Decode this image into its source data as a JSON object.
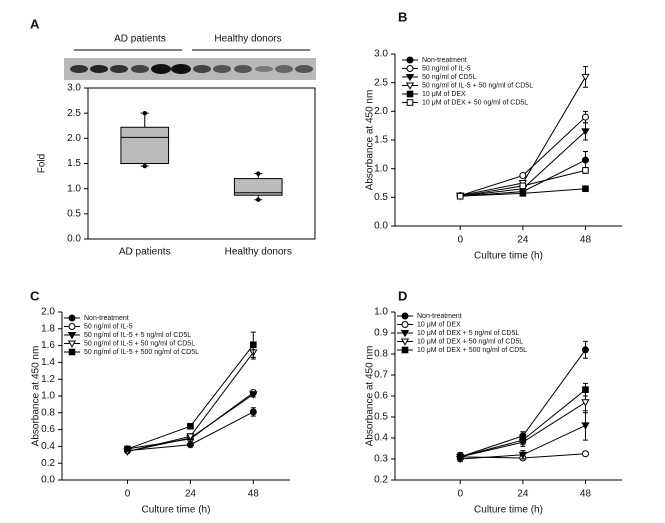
{
  "chart_data": [
    {
      "type": "box",
      "panel": "A",
      "blot_labels": [
        "AD patients",
        "Healthy donors"
      ],
      "y_label": "Fold",
      "categories": [
        "AD patients",
        "Healthy donors"
      ],
      "color": "#bbbbbb",
      "boxes": [
        {
          "min": 1.45,
          "q1": 1.5,
          "median": 2.02,
          "q3": 2.22,
          "max": 2.5
        },
        {
          "min": 0.78,
          "q1": 0.87,
          "median": 0.92,
          "q3": 1.2,
          "max": 1.3
        }
      ],
      "ylim": [
        0,
        3
      ],
      "yticks": [
        {
          "value": 0,
          "label": "0.0"
        },
        {
          "value": 0.5,
          "label": "0.5"
        },
        {
          "value": 1,
          "label": "1.0"
        },
        {
          "value": 1.5,
          "label": "1.5"
        },
        {
          "value": 2,
          "label": "2.0"
        },
        {
          "value": 2.5,
          "label": "2.5"
        },
        {
          "value": 3,
          "label": "3.0"
        }
      ]
    },
    {
      "type": "line",
      "panel": "B",
      "x_label": "Culture time (h)",
      "y_label": "Absorbance at 450 nm",
      "x": [
        0,
        24,
        48
      ],
      "xlim": [
        -25,
        62
      ],
      "xticks": [
        0,
        24,
        48
      ],
      "ylim": [
        0,
        3
      ],
      "yticks": [
        {
          "value": 0,
          "label": "0.0"
        },
        {
          "value": 0.5,
          "label": "0.5"
        },
        {
          "value": 1,
          "label": "1.0"
        },
        {
          "value": 1.5,
          "label": "1.5"
        },
        {
          "value": 2,
          "label": "2.0"
        },
        {
          "value": 2.5,
          "label": "2.5"
        },
        {
          "value": 3,
          "label": "3.0"
        }
      ],
      "series": [
        {
          "name": "Non-treatment",
          "color": "#000000",
          "marker": "circle",
          "filled": true,
          "values": [
            0.52,
            0.6,
            1.15
          ],
          "errors": [
            0.02,
            0.02,
            0.15
          ]
        },
        {
          "name": "50 ng/ml of IL-5",
          "color": "#000000",
          "marker": "circle",
          "filled": false,
          "values": [
            0.53,
            0.88,
            1.9
          ],
          "errors": [
            0.02,
            0.03,
            0.1
          ]
        },
        {
          "name": "50 ng/ml of CD5L",
          "color": "#000000",
          "marker": "triangle",
          "filled": true,
          "values": [
            0.52,
            0.65,
            1.65
          ],
          "errors": [
            0.02,
            0.03,
            0.15
          ]
        },
        {
          "name": "50 ng/ml of IL-5 + 50 ng/ml of CD5L",
          "color": "#000000",
          "marker": "triangle",
          "filled": false,
          "values": [
            0.53,
            0.75,
            2.6
          ],
          "errors": [
            0.02,
            0.03,
            0.18
          ]
        },
        {
          "name": "10 μM of DEX",
          "color": "#000000",
          "marker": "square",
          "filled": true,
          "values": [
            0.52,
            0.57,
            0.65
          ],
          "errors": [
            0.01,
            0.02,
            0.02
          ]
        },
        {
          "name": "10 μM of DEX + 50 ng/ml of CD5L",
          "color": "#000000",
          "marker": "square",
          "filled": false,
          "values": [
            0.52,
            0.7,
            0.97
          ],
          "errors": [
            0.02,
            0.03,
            0.05
          ]
        }
      ]
    },
    {
      "type": "line",
      "panel": "C",
      "x_label": "Culture time (h)",
      "y_label": "Absorbance at 450 nm",
      "x": [
        0,
        24,
        48
      ],
      "xlim": [
        -25,
        62
      ],
      "xticks": [
        0,
        24,
        48
      ],
      "ylim": [
        0,
        2
      ],
      "yticks": [
        {
          "value": 0,
          "label": "0.0"
        },
        {
          "value": 0.2,
          "label": "0.2"
        },
        {
          "value": 0.4,
          "label": "0.4"
        },
        {
          "value": 0.6,
          "label": "0.6"
        },
        {
          "value": 0.8,
          "label": "0.8"
        },
        {
          "value": 1,
          "label": "1.0"
        },
        {
          "value": 1.2,
          "label": "1.2"
        },
        {
          "value": 1.4,
          "label": "1.4"
        },
        {
          "value": 1.6,
          "label": "1.6"
        },
        {
          "value": 1.8,
          "label": "1.8"
        },
        {
          "value": 2,
          "label": "2.0"
        }
      ],
      "series": [
        {
          "name": "Non-treatment",
          "color": "#000000",
          "marker": "circle",
          "filled": true,
          "values": [
            0.35,
            0.42,
            0.81
          ],
          "errors": [
            0.02,
            0.02,
            0.05
          ]
        },
        {
          "name": "50 ng/ml of IL-5",
          "color": "#000000",
          "marker": "circle",
          "filled": false,
          "values": [
            0.37,
            0.49,
            1.04
          ],
          "errors": [
            0.02,
            0.02,
            0.03
          ]
        },
        {
          "name": "50 ng/ml of IL-5 + 5 ng/ml of CD5L",
          "color": "#000000",
          "marker": "triangle",
          "filled": true,
          "values": [
            0.34,
            0.5,
            1.02
          ],
          "errors": [
            0.02,
            0.02,
            0.03
          ]
        },
        {
          "name": "50 ng/ml of IL-5 + 50 ng/ml of CD5L",
          "color": "#000000",
          "marker": "triangle",
          "filled": false,
          "values": [
            0.34,
            0.52,
            1.52
          ],
          "errors": [
            0.02,
            0.03,
            0.08
          ]
        },
        {
          "name": "50 ng/ml of IL-5 + 500 ng/ml of CD5L",
          "color": "#000000",
          "marker": "square",
          "filled": true,
          "values": [
            0.37,
            0.64,
            1.61
          ],
          "errors": [
            0.02,
            0.02,
            0.15
          ]
        }
      ]
    },
    {
      "type": "line",
      "panel": "D",
      "x_label": "Culture time (h)",
      "y_label": "Absorbance at 450 nm",
      "x": [
        0,
        24,
        48
      ],
      "xlim": [
        -25,
        62
      ],
      "xticks": [
        0,
        24,
        48
      ],
      "ylim": [
        0.2,
        1
      ],
      "yticks": [
        0.2,
        0.3,
        0.4,
        0.5,
        0.6,
        0.7,
        0.8,
        0.9,
        {
          "value": 1,
          "label": "1.0"
        }
      ],
      "series": [
        {
          "name": "Non-treatment",
          "color": "#000000",
          "marker": "circle",
          "filled": true,
          "values": [
            0.31,
            0.41,
            0.82
          ],
          "errors": [
            0.02,
            0.02,
            0.04
          ]
        },
        {
          "name": "10 μM of DEX",
          "color": "#000000",
          "marker": "circle",
          "filled": false,
          "values": [
            0.31,
            0.305,
            0.325
          ],
          "errors": [
            0.01,
            0.01,
            0.01
          ]
        },
        {
          "name": "10 μM of DEX + 5 ng/ml of CD5L",
          "color": "#000000",
          "marker": "triangle",
          "filled": true,
          "values": [
            0.3,
            0.32,
            0.46
          ],
          "errors": [
            0.01,
            0.02,
            0.07
          ]
        },
        {
          "name": "10 μM of DEX + 50 ng/ml of CD5L",
          "color": "#000000",
          "marker": "triangle",
          "filled": false,
          "values": [
            0.31,
            0.38,
            0.57
          ],
          "errors": [
            0.02,
            0.02,
            0.05
          ]
        },
        {
          "name": "10 μM of DEX + 500 ng/ml of CD5L",
          "color": "#000000",
          "marker": "square",
          "filled": true,
          "values": [
            0.31,
            0.39,
            0.63
          ],
          "errors": [
            0.02,
            0.02,
            0.03
          ]
        }
      ]
    }
  ]
}
